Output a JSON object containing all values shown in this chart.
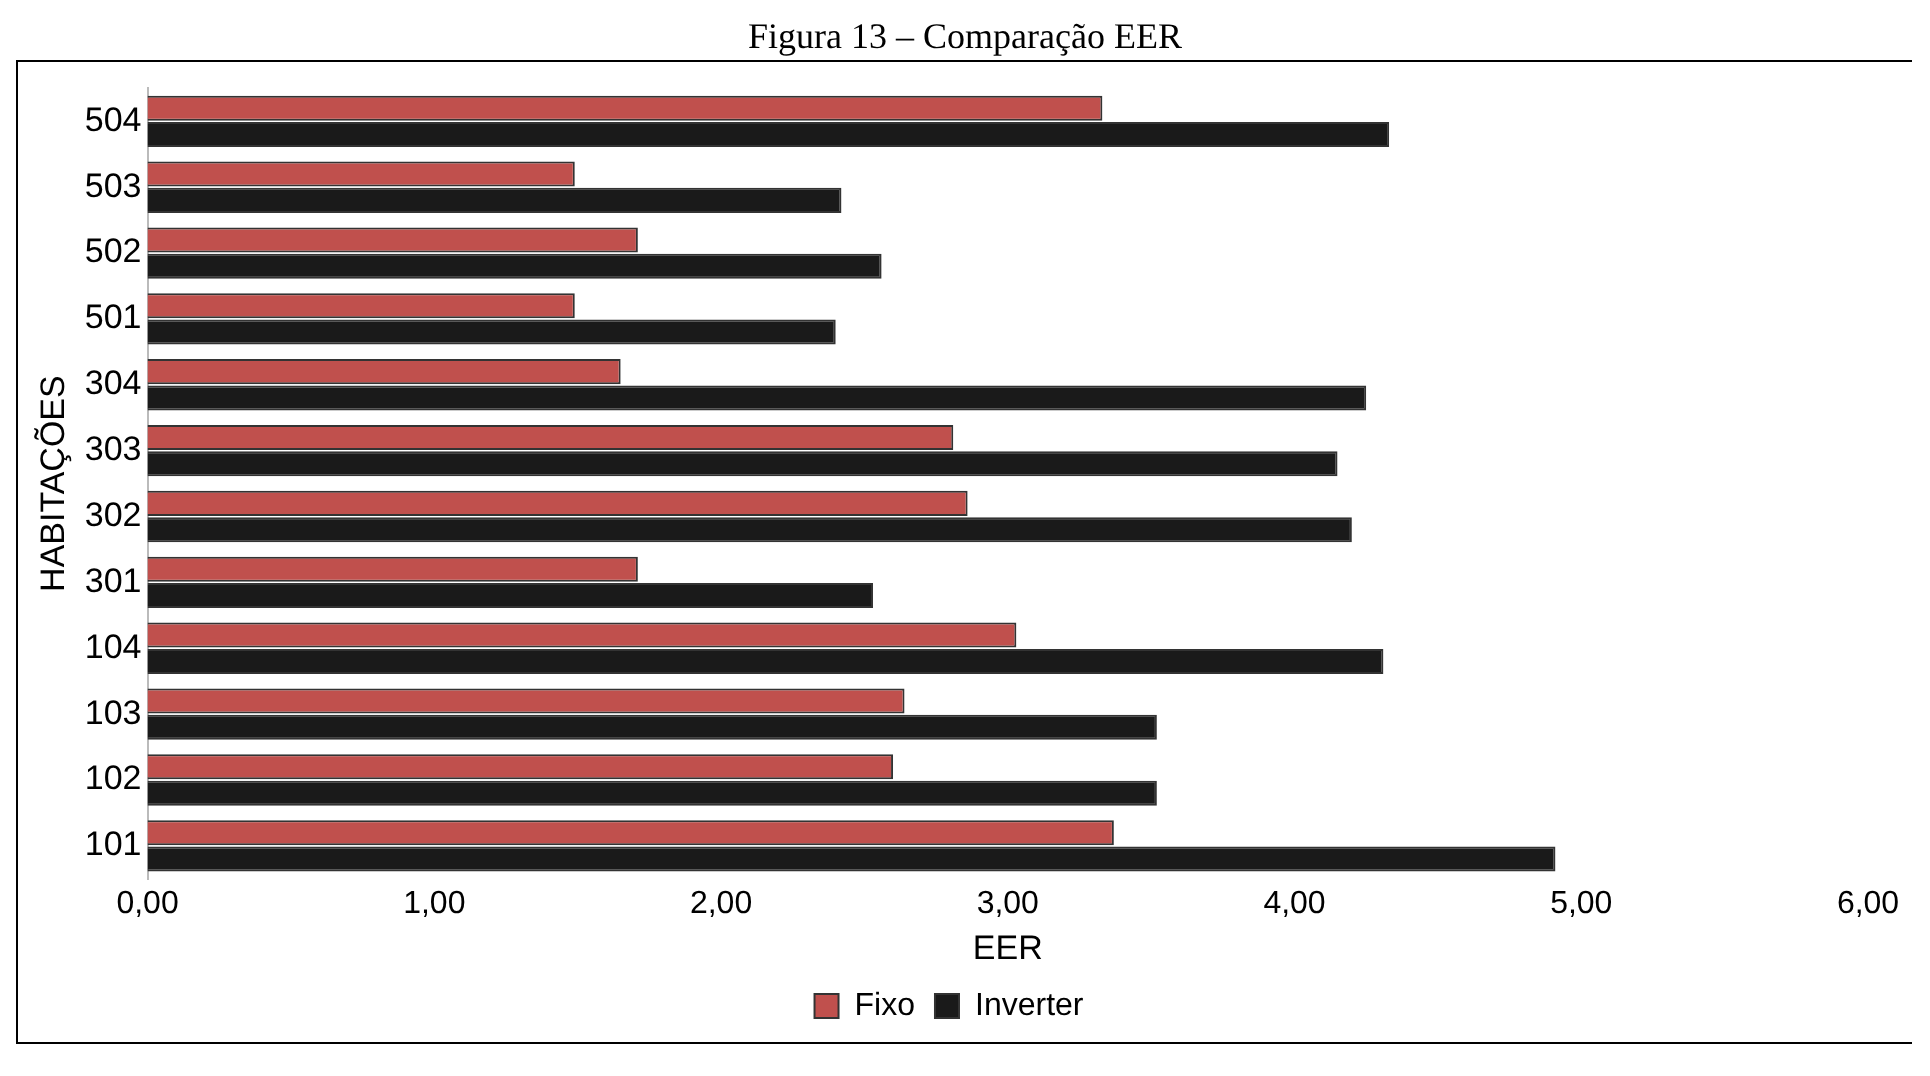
{
  "chart_data": {
    "type": "bar",
    "orientation": "horizontal",
    "title": "Figura 13 – Comparação EER",
    "xlabel": "EER",
    "ylabel": "HABITAÇÕES",
    "categories": [
      "504",
      "503",
      "502",
      "501",
      "304",
      "303",
      "302",
      "301",
      "104",
      "103",
      "102",
      "101"
    ],
    "series": [
      {
        "name": "Fixo",
        "color": "#c0504d",
        "values": [
          3.33,
          1.49,
          1.71,
          1.49,
          1.65,
          2.81,
          2.86,
          1.71,
          3.03,
          2.64,
          2.6,
          3.37
        ]
      },
      {
        "name": "Inverter",
        "color": "#1a1a1a",
        "values": [
          4.33,
          2.42,
          2.56,
          2.4,
          4.25,
          4.15,
          4.2,
          2.53,
          4.31,
          3.52,
          3.52,
          4.91
        ]
      }
    ],
    "xlim": [
      0,
      6
    ],
    "xticks": [
      {
        "value": 0,
        "label": "0,00"
      },
      {
        "value": 1,
        "label": "1,00"
      },
      {
        "value": 2,
        "label": "2,00"
      },
      {
        "value": 3,
        "label": "3,00"
      },
      {
        "value": 4,
        "label": "4,00"
      },
      {
        "value": 5,
        "label": "5,00"
      },
      {
        "value": 6,
        "label": "6,00"
      }
    ],
    "grid": false,
    "legend": "bottom"
  }
}
